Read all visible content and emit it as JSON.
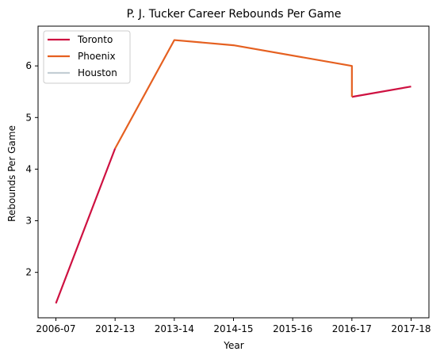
{
  "chart_data": {
    "type": "line",
    "title": "P. J. Tucker Career Rebounds Per Game",
    "xlabel": "Year",
    "ylabel": "Rebounds Per Game",
    "categories": [
      "2006-07",
      "2012-13",
      "2013-14",
      "2014-15",
      "2015-16",
      "2016-17",
      "2017-18"
    ],
    "ylim": [
      1.12,
      6.77
    ],
    "yticks": [
      2,
      3,
      4,
      5,
      6
    ],
    "grid": false,
    "legend_position": "top-left",
    "series": [
      {
        "name": "Toronto",
        "color": "#CE1141",
        "points": [
          {
            "x": "2006-07",
            "y": 1.4
          },
          {
            "x": "2012-13",
            "y": 4.4
          }
        ],
        "points_b": [
          {
            "x": "2016-17",
            "y": 5.4
          },
          {
            "x": "2017-18",
            "y": 5.6
          }
        ]
      },
      {
        "name": "Phoenix",
        "color": "#E56020",
        "points": [
          {
            "x": "2012-13",
            "y": 4.4
          },
          {
            "x": "2013-14",
            "y": 6.5
          },
          {
            "x": "2014-15",
            "y": 6.4
          },
          {
            "x": "2016-17",
            "y": 6.0
          },
          {
            "x": "2016-17",
            "y": 5.4
          }
        ]
      },
      {
        "name": "Houston",
        "color": "#C4CED4",
        "points": []
      }
    ]
  }
}
